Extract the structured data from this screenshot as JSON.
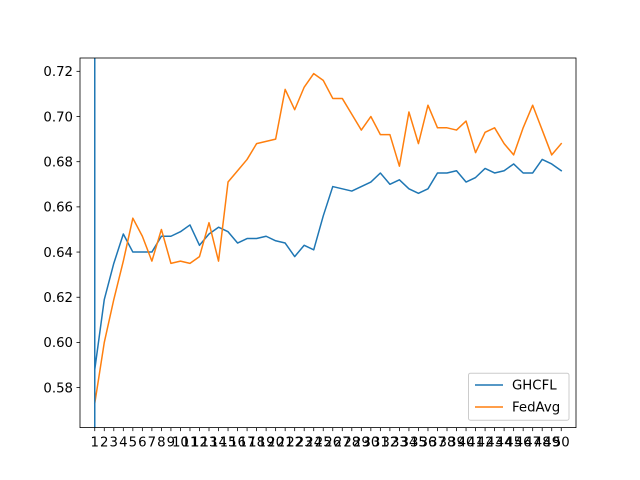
{
  "chart_data": {
    "type": "line",
    "title": "",
    "xlabel": "",
    "ylabel": "",
    "x": [
      1,
      2,
      3,
      4,
      5,
      6,
      7,
      8,
      9,
      10,
      11,
      12,
      13,
      14,
      15,
      16,
      17,
      18,
      19,
      20,
      21,
      22,
      23,
      24,
      25,
      26,
      27,
      28,
      29,
      30,
      31,
      32,
      33,
      34,
      35,
      36,
      37,
      38,
      39,
      40,
      41,
      42,
      43,
      44,
      45,
      46,
      47,
      48,
      49,
      50
    ],
    "xlim": [
      -0.55,
      51.55
    ],
    "ylim": [
      0.5623,
      0.7259
    ],
    "yticks": [
      0.58,
      0.6,
      0.62,
      0.64,
      0.66,
      0.68,
      0.7,
      0.72
    ],
    "ytick_labels": [
      "0.58",
      "0.60",
      "0.62",
      "0.64",
      "0.66",
      "0.68",
      "0.70",
      "0.72"
    ],
    "grid": false,
    "legend_position": "bottom-right",
    "series": [
      {
        "name": "GHCFL",
        "color": "#1f77b4",
        "values": [
          0.588,
          0.619,
          0.635,
          0.648,
          0.64,
          0.64,
          0.64,
          0.647,
          0.647,
          0.649,
          0.652,
          0.643,
          0.648,
          0.651,
          0.649,
          0.644,
          0.646,
          0.646,
          0.647,
          0.645,
          0.644,
          0.638,
          0.643,
          0.641,
          0.656,
          0.669,
          0.668,
          0.667,
          0.669,
          0.671,
          0.675,
          0.67,
          0.672,
          0.668,
          0.666,
          0.668,
          0.675,
          0.675,
          0.676,
          0.671,
          0.673,
          0.677,
          0.675,
          0.676,
          0.679,
          0.675,
          0.675,
          0.681,
          0.679,
          0.676
        ]
      },
      {
        "name": "FedAvg",
        "color": "#ff7f0e",
        "values": [
          0.573,
          0.6,
          0.619,
          0.636,
          0.655,
          0.647,
          0.636,
          0.65,
          0.635,
          0.636,
          0.635,
          0.638,
          0.653,
          0.636,
          0.671,
          0.676,
          0.681,
          0.688,
          0.689,
          0.69,
          0.712,
          0.703,
          0.713,
          0.719,
          0.716,
          0.708,
          0.708,
          0.701,
          0.694,
          0.7,
          0.692,
          0.692,
          0.678,
          0.702,
          0.688,
          0.705,
          0.695,
          0.695,
          0.694,
          0.698,
          0.684,
          0.693,
          0.695,
          0.688,
          0.683,
          0.695,
          0.705,
          0.694,
          0.683,
          0.688
        ]
      }
    ],
    "vertical_line": {
      "x": 1,
      "color": "#1f77b4"
    }
  }
}
